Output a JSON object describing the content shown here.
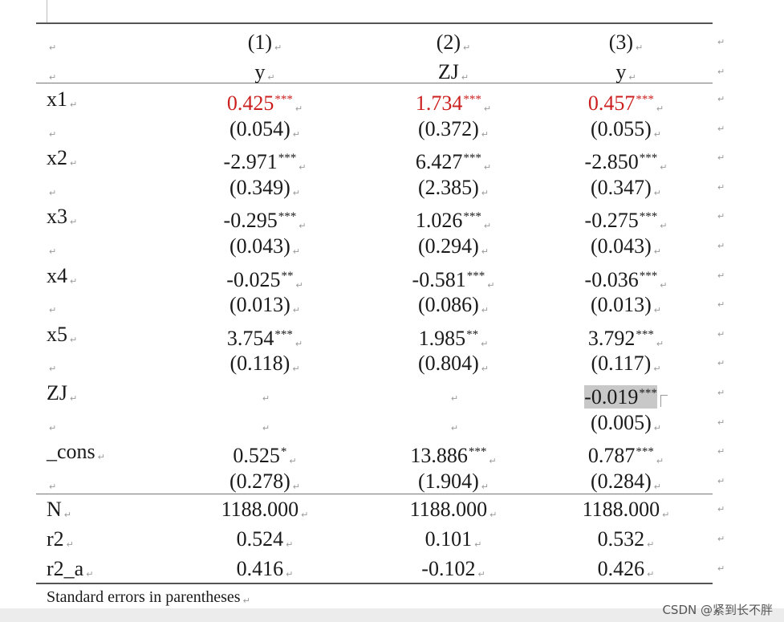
{
  "para_mark": "↵",
  "header": {
    "models": [
      "(1)",
      "(2)",
      "(3)"
    ],
    "depvars": [
      "y",
      "ZJ",
      "y"
    ]
  },
  "rows": [
    {
      "label": "x1",
      "cells": [
        {
          "value": "0.425",
          "stars": "***",
          "red": true
        },
        {
          "value": "1.734",
          "stars": "***",
          "red": true
        },
        {
          "value": "0.457",
          "stars": "***",
          "red": true
        }
      ]
    },
    {
      "label": "",
      "cells": [
        {
          "value": "(0.054)",
          "stars": ""
        },
        {
          "value": "(0.372)",
          "stars": ""
        },
        {
          "value": "(0.055)",
          "stars": ""
        }
      ]
    },
    {
      "label": "x2",
      "cells": [
        {
          "value": "-2.971",
          "stars": "***"
        },
        {
          "value": "6.427",
          "stars": "***"
        },
        {
          "value": "-2.850",
          "stars": "***"
        }
      ]
    },
    {
      "label": "",
      "cells": [
        {
          "value": "(0.349)",
          "stars": ""
        },
        {
          "value": "(2.385)",
          "stars": ""
        },
        {
          "value": "(0.347)",
          "stars": ""
        }
      ]
    },
    {
      "label": "x3",
      "cells": [
        {
          "value": "-0.295",
          "stars": "***"
        },
        {
          "value": "1.026",
          "stars": "***"
        },
        {
          "value": "-0.275",
          "stars": "***"
        }
      ]
    },
    {
      "label": "",
      "cells": [
        {
          "value": "(0.043)",
          "stars": ""
        },
        {
          "value": "(0.294)",
          "stars": ""
        },
        {
          "value": "(0.043)",
          "stars": ""
        }
      ]
    },
    {
      "label": "x4",
      "cells": [
        {
          "value": "-0.025",
          "stars": "**"
        },
        {
          "value": "-0.581",
          "stars": "***"
        },
        {
          "value": "-0.036",
          "stars": "***"
        }
      ]
    },
    {
      "label": "",
      "cells": [
        {
          "value": "(0.013)",
          "stars": ""
        },
        {
          "value": "(0.086)",
          "stars": ""
        },
        {
          "value": "(0.013)",
          "stars": ""
        }
      ]
    },
    {
      "label": "x5",
      "cells": [
        {
          "value": "3.754",
          "stars": "***"
        },
        {
          "value": "1.985",
          "stars": "**"
        },
        {
          "value": "3.792",
          "stars": "***"
        }
      ]
    },
    {
      "label": "",
      "cells": [
        {
          "value": "(0.118)",
          "stars": ""
        },
        {
          "value": "(0.804)",
          "stars": ""
        },
        {
          "value": "(0.117)",
          "stars": ""
        }
      ]
    },
    {
      "label": "ZJ",
      "cells": [
        {
          "value": "",
          "stars": ""
        },
        {
          "value": "",
          "stars": ""
        },
        {
          "value": "-0.019",
          "stars": "***",
          "highlight": true
        }
      ]
    },
    {
      "label": "",
      "cells": [
        {
          "value": "",
          "stars": ""
        },
        {
          "value": "",
          "stars": ""
        },
        {
          "value": "(0.005)",
          "stars": ""
        }
      ]
    },
    {
      "label": "_cons",
      "cells": [
        {
          "value": "0.525",
          "stars": "*"
        },
        {
          "value": "13.886",
          "stars": "***"
        },
        {
          "value": "0.787",
          "stars": "***"
        }
      ]
    },
    {
      "label": "",
      "cells": [
        {
          "value": "(0.278)",
          "stars": ""
        },
        {
          "value": "(1.904)",
          "stars": ""
        },
        {
          "value": "(0.284)",
          "stars": ""
        }
      ]
    }
  ],
  "stats": [
    {
      "label": "N",
      "cells": [
        {
          "value": "1188.000"
        },
        {
          "value": "1188.000"
        },
        {
          "value": "1188.000"
        }
      ]
    },
    {
      "label": "r2",
      "cells": [
        {
          "value": "0.524"
        },
        {
          "value": "0.101"
        },
        {
          "value": "0.532"
        }
      ]
    },
    {
      "label": "r2_a",
      "cells": [
        {
          "value": "0.416"
        },
        {
          "value": "-0.102"
        },
        {
          "value": "0.426"
        }
      ]
    }
  ],
  "note": "Standard errors in parentheses",
  "watermark": "CSDN @紧到长不胖",
  "colors": {
    "significant_red": "#cc1f1f",
    "highlight_gray": "#c8c8c8"
  }
}
